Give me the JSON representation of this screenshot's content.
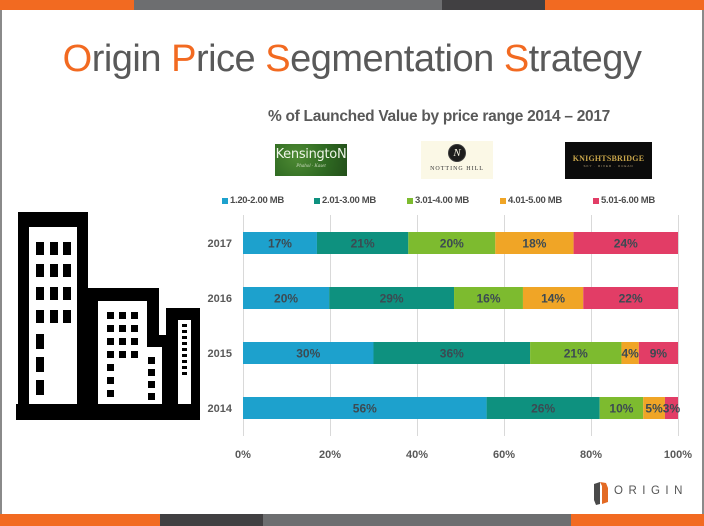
{
  "slide": {
    "title_segments": [
      {
        "text": "O",
        "highlight": true
      },
      {
        "text": "rigin ",
        "highlight": false
      },
      {
        "text": "P",
        "highlight": true
      },
      {
        "text": "rice ",
        "highlight": false
      },
      {
        "text": "S",
        "highlight": true
      },
      {
        "text": "egmentation ",
        "highlight": false
      },
      {
        "text": "S",
        "highlight": true
      },
      {
        "text": "trategy",
        "highlight": false
      }
    ],
    "subtitle": "% of Launched Value by price range 2014 – 2017",
    "logos": {
      "kensington": {
        "main": "KensingtoN",
        "sub": "Phahol · Kaset"
      },
      "notting_hill": {
        "seal": "N",
        "text": "NOTTING HILL"
      },
      "knightsbridge": {
        "main": "KNIGHTSBRIDGE",
        "sub": "SKY · RIVER · OCEAN"
      }
    },
    "brand": {
      "name": "ORIGIN"
    },
    "colors": {
      "accent_orange": "#f26a21",
      "strip_gray": "#6d6e70",
      "strip_dark": "#414042",
      "title_gray": "#595959"
    }
  },
  "chart_data": {
    "type": "bar",
    "orientation": "horizontal",
    "stacked": "percent",
    "title": "% of Launched Value by price range 2014 – 2017",
    "xlabel": "",
    "ylabel": "",
    "categories": [
      "2017",
      "2016",
      "2015",
      "2014"
    ],
    "series": [
      {
        "name": "1.20-2.00 MB",
        "color": "#1da1cd",
        "values": [
          17,
          20,
          30,
          56
        ]
      },
      {
        "name": "2.01-3.00 MB",
        "color": "#0e917f",
        "values": [
          21,
          29,
          36,
          26
        ]
      },
      {
        "name": "3.01-4.00 MB",
        "color": "#7dbb2f",
        "values": [
          20,
          16,
          21,
          10
        ]
      },
      {
        "name": "4.01-5.00 MB",
        "color": "#f0a526",
        "values": [
          18,
          14,
          4,
          5
        ]
      },
      {
        "name": "5.01-6.00 MB",
        "color": "#e23d66",
        "values": [
          24,
          22,
          9,
          3
        ]
      }
    ],
    "data_labels": [
      [
        "17%",
        "21%",
        "20%",
        "18%",
        "24%"
      ],
      [
        "20%",
        "29%",
        "16%",
        "14%",
        "22%"
      ],
      [
        "30%",
        "36%",
        "21%",
        "4%",
        "9%"
      ],
      [
        "56%",
        "26%",
        "10%",
        "5%",
        "3%"
      ]
    ],
    "xlim": [
      0,
      100
    ],
    "xticks": [
      "0%",
      "20%",
      "40%",
      "60%",
      "80%",
      "100%"
    ],
    "grid": true,
    "legend_position": "top"
  }
}
